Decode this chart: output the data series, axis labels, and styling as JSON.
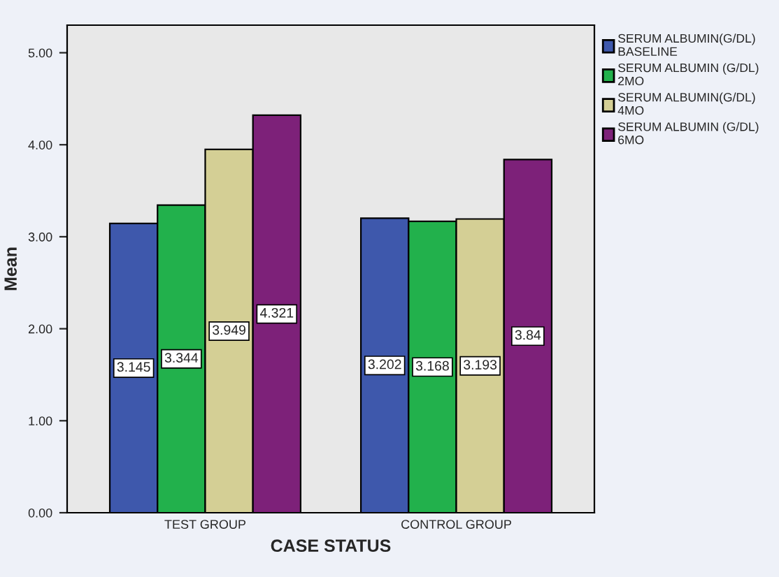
{
  "chart_data": {
    "type": "bar",
    "xlabel": "CASE STATUS",
    "ylabel": "Mean",
    "categories": [
      "TEST GROUP",
      "CONTROL GROUP"
    ],
    "series": [
      {
        "name": "SERUM ALBUMIN(G/DL)\nBASELINE",
        "color": "#3e58ac",
        "values": [
          3.145,
          3.202
        ]
      },
      {
        "name": "SERUM ALBUMIN (G/DL)\n2MO",
        "color": "#22b14c",
        "values": [
          3.344,
          3.168
        ]
      },
      {
        "name": "SERUM ALBUMIN(G/DL)\n4MO",
        "color": "#d4cf95",
        "values": [
          3.949,
          3.193
        ]
      },
      {
        "name": "SERUM ALBUMIN (G/DL)\n6MO",
        "color": "#7d2179",
        "values": [
          4.321,
          3.84
        ]
      }
    ],
    "ylim": [
      0,
      5.3
    ],
    "yticks": [
      {
        "value": 0,
        "label": "0.00"
      },
      {
        "value": 1,
        "label": "1.00"
      },
      {
        "value": 2,
        "label": "2.00"
      },
      {
        "value": 3,
        "label": "3.00"
      },
      {
        "value": 4,
        "label": "4.00"
      },
      {
        "value": 5,
        "label": "5.00"
      }
    ],
    "data_labels": true,
    "legend": "right",
    "grid": false
  }
}
